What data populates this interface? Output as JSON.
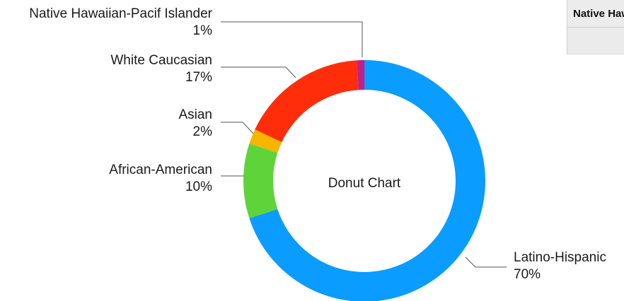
{
  "chart_data": {
    "type": "pie",
    "variant": "donut",
    "center_label": "Donut Chart",
    "slices": [
      {
        "name": "Latino-Hispanic",
        "value": 70,
        "label": "70%",
        "color": "#0a9cff"
      },
      {
        "name": "African-American",
        "value": 10,
        "label": "10%",
        "color": "#5fd43a"
      },
      {
        "name": "Asian",
        "value": 2,
        "label": "2%",
        "color": "#f7b500"
      },
      {
        "name": "White Caucasian",
        "value": 17,
        "label": "17%",
        "color": "#ff2d0a"
      },
      {
        "name": "Native Hawaiian-Pacif Islander",
        "value": 1,
        "label": "1%",
        "color": "#c21e8e"
      }
    ]
  },
  "table": {
    "header": "Native Hawaiian-Pacif Islander"
  }
}
